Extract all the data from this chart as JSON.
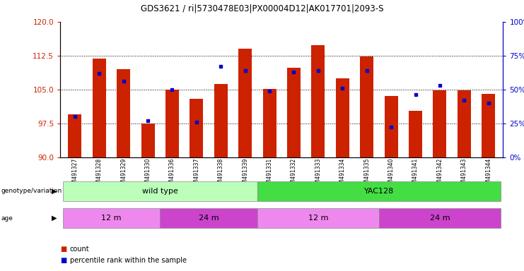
{
  "title": "GDS3621 / ri|5730478E03|PX00004D12|AK017701|2093-S",
  "samples": [
    "GSM491327",
    "GSM491328",
    "GSM491329",
    "GSM491330",
    "GSM491336",
    "GSM491337",
    "GSM491338",
    "GSM491339",
    "GSM491331",
    "GSM491332",
    "GSM491333",
    "GSM491334",
    "GSM491335",
    "GSM491340",
    "GSM491341",
    "GSM491342",
    "GSM491343",
    "GSM491344"
  ],
  "counts": [
    99.5,
    111.8,
    109.5,
    97.5,
    104.9,
    103.0,
    106.2,
    114.0,
    105.1,
    109.8,
    114.8,
    107.5,
    112.3,
    103.5,
    100.2,
    104.8,
    104.8,
    104.0
  ],
  "percentiles": [
    30,
    62,
    56,
    27,
    50,
    26,
    67,
    64,
    49,
    63,
    64,
    51,
    64,
    22,
    46,
    53,
    42,
    40
  ],
  "ylim_left": [
    90,
    120
  ],
  "ylim_right": [
    0,
    100
  ],
  "yticks_left": [
    90,
    97.5,
    105,
    112.5,
    120
  ],
  "yticks_right": [
    0,
    25,
    50,
    75,
    100
  ],
  "bar_color": "#cc2200",
  "dot_color": "#0000cc",
  "genotype_labels": [
    {
      "label": "wild type",
      "start": 0,
      "end": 8,
      "color": "#bbffbb"
    },
    {
      "label": "YAC128",
      "start": 8,
      "end": 18,
      "color": "#44dd44"
    }
  ],
  "age_labels": [
    {
      "label": "12 m",
      "start": 0,
      "end": 4,
      "color": "#ee88ee"
    },
    {
      "label": "24 m",
      "start": 4,
      "end": 8,
      "color": "#cc44cc"
    },
    {
      "label": "12 m",
      "start": 8,
      "end": 13,
      "color": "#ee88ee"
    },
    {
      "label": "24 m",
      "start": 13,
      "end": 18,
      "color": "#cc44cc"
    }
  ],
  "left_axis_color": "#cc2200",
  "right_axis_color": "#0000cc"
}
